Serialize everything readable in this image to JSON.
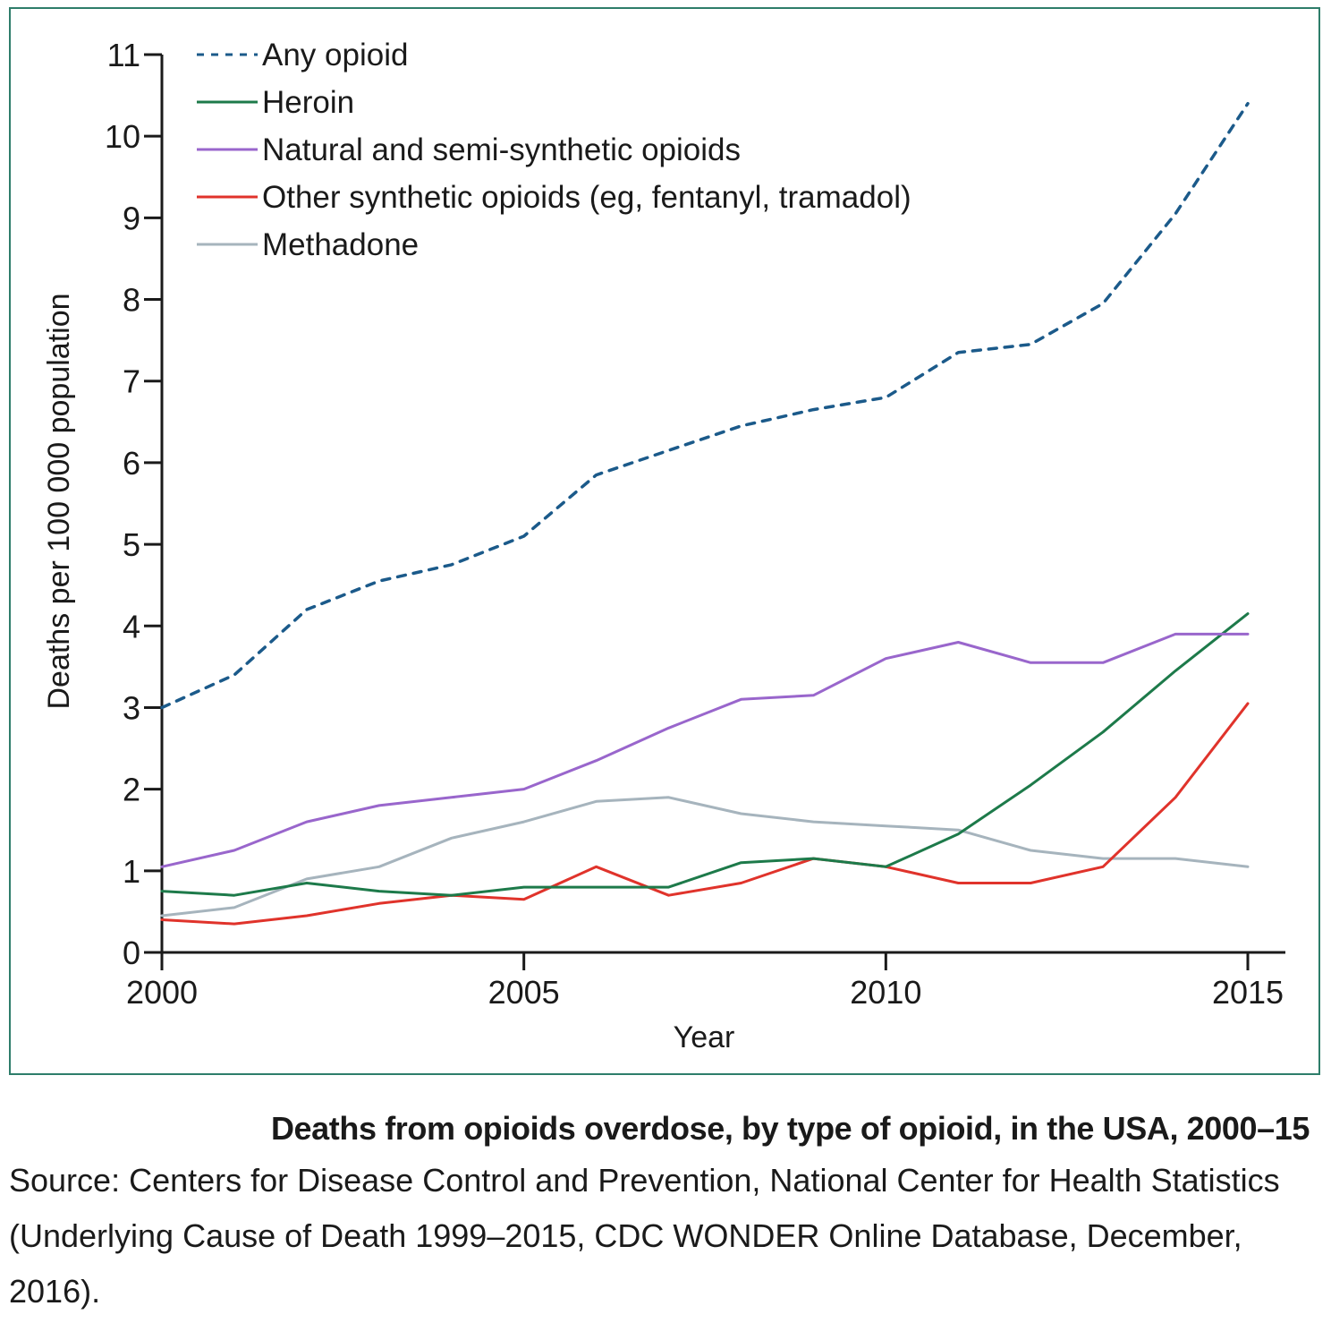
{
  "chart_data": {
    "type": "line",
    "xlabel": "Year",
    "ylabel": "Deaths per 100 000 population",
    "xlim": [
      2000,
      2015
    ],
    "ylim": [
      0,
      11
    ],
    "xticks": [
      "2000",
      "2005",
      "2010",
      "2015"
    ],
    "yticks": [
      "0",
      "1",
      "2",
      "3",
      "4",
      "5",
      "6",
      "7",
      "8",
      "9",
      "10",
      "11"
    ],
    "grid": false,
    "legend_position": "top-left",
    "x": [
      2000,
      2001,
      2002,
      2003,
      2004,
      2005,
      2006,
      2007,
      2008,
      2009,
      2010,
      2011,
      2012,
      2013,
      2014,
      2015
    ],
    "series": [
      {
        "name": "Any opioid",
        "color": "#1b5a8a",
        "style": "dashed",
        "values": [
          3.0,
          3.4,
          4.2,
          4.55,
          4.75,
          5.1,
          5.85,
          6.15,
          6.45,
          6.65,
          6.8,
          7.35,
          7.45,
          7.95,
          9.05,
          10.4
        ]
      },
      {
        "name": "Heroin",
        "color": "#1d7a4a",
        "style": "solid",
        "values": [
          0.75,
          0.7,
          0.85,
          0.75,
          0.7,
          0.8,
          0.8,
          0.8,
          1.1,
          1.15,
          1.05,
          1.45,
          2.05,
          2.7,
          3.45,
          4.15
        ]
      },
      {
        "name": "Natural and semi-synthetic opioids",
        "color": "#9966cc",
        "style": "solid",
        "values": [
          1.05,
          1.25,
          1.6,
          1.8,
          1.9,
          2.0,
          2.35,
          2.75,
          3.1,
          3.15,
          3.6,
          3.8,
          3.55,
          3.55,
          3.9,
          3.9
        ]
      },
      {
        "name": "Other synthetic opioids (eg, fentanyl, tramadol)",
        "color": "#e0332b",
        "style": "solid",
        "values": [
          0.4,
          0.35,
          0.45,
          0.6,
          0.7,
          0.65,
          1.05,
          0.7,
          0.85,
          1.15,
          1.05,
          0.85,
          0.85,
          1.05,
          1.9,
          3.05
        ]
      },
      {
        "name": "Methadone",
        "color": "#a6b4bd",
        "style": "solid",
        "values": [
          0.45,
          0.55,
          0.9,
          1.05,
          1.4,
          1.6,
          1.85,
          1.9,
          1.7,
          1.6,
          1.55,
          1.5,
          1.25,
          1.15,
          1.15,
          1.05
        ]
      }
    ]
  },
  "caption": {
    "title": "Deaths from opioids overdose, by type of opioid, in the USA, 2000–15",
    "source": "Source: Centers for Disease Control and Prevention, National Center for Health Statistics (Underlying Cause of Death 1999–2015, CDC WONDER Online Database, December, 2016)."
  }
}
